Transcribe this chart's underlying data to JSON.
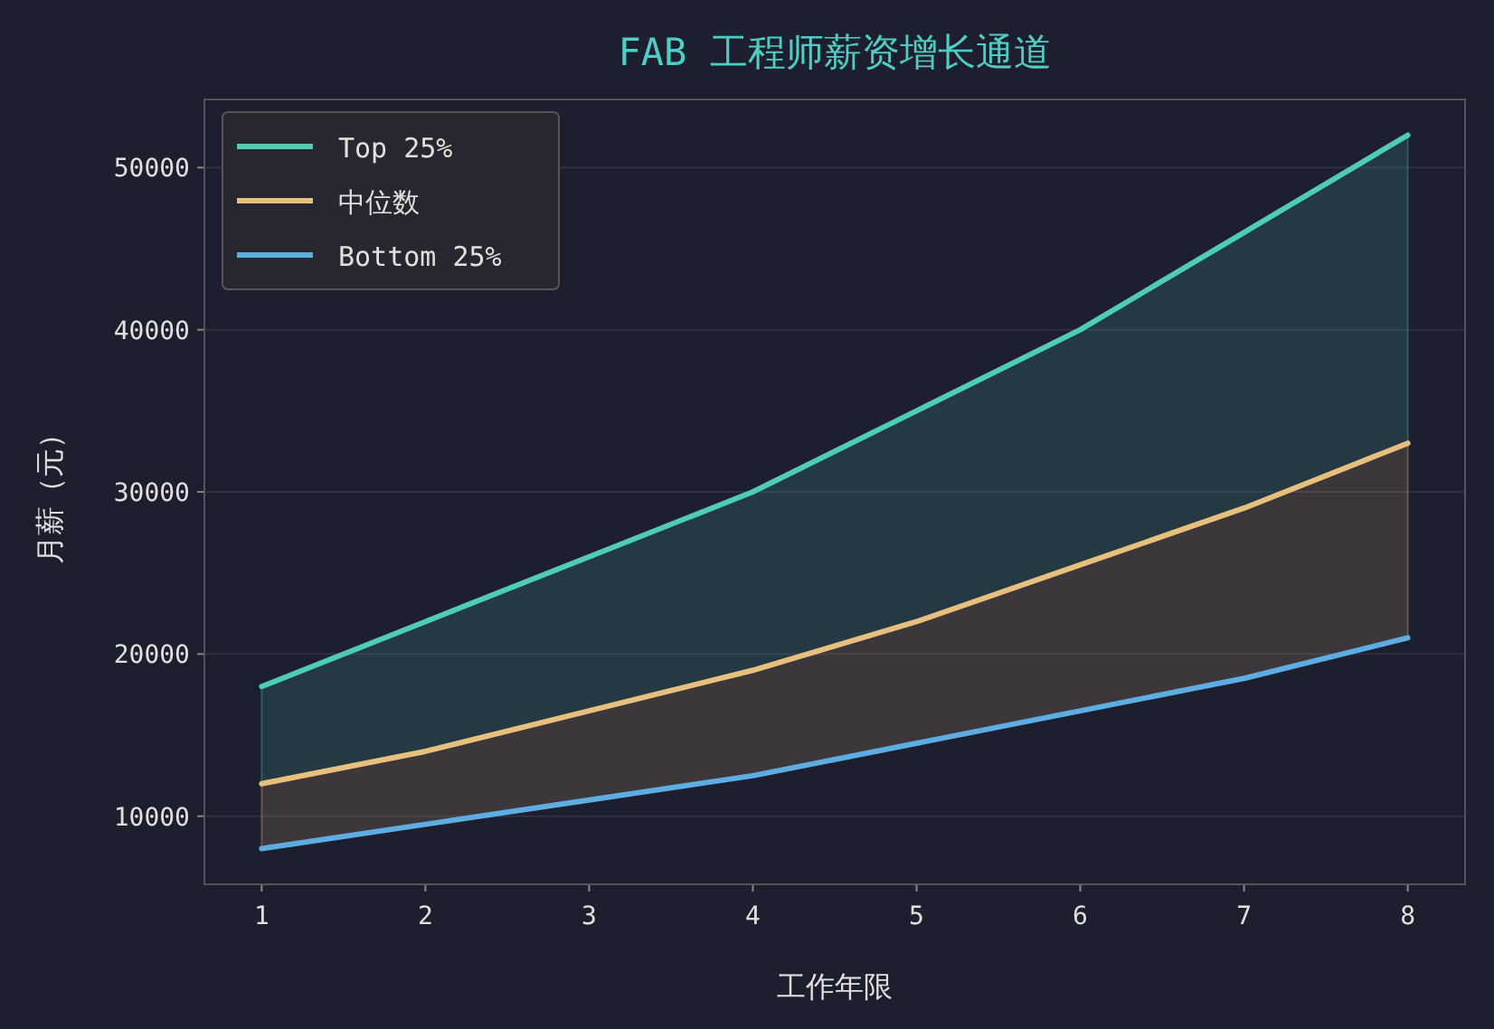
{
  "chart_data": {
    "type": "line",
    "title": "FAB 工程师薪资增长通道",
    "xlabel": "工作年限",
    "ylabel": "月薪（元）",
    "x": [
      1,
      2,
      3,
      4,
      5,
      6,
      7,
      8
    ],
    "series": [
      {
        "name": "Top 25%",
        "color": "#4ecdb4",
        "values": [
          18000,
          22000,
          26000,
          30000,
          35000,
          40000,
          46000,
          52000
        ],
        "lower": [
          12000,
          14000,
          16500,
          19000,
          22000,
          25500,
          29000,
          33000
        ],
        "upper": [
          18000,
          22000,
          26000,
          30000,
          35000,
          40000,
          46000,
          52000
        ]
      },
      {
        "name": "中位数",
        "color": "#e8c07d",
        "values": [
          12000,
          14000,
          16500,
          19000,
          22000,
          25500,
          29000,
          33000
        ],
        "lower": [
          8000,
          9500,
          11000,
          12500,
          14500,
          16500,
          18500,
          21000
        ],
        "upper": [
          12000,
          14000,
          16500,
          19000,
          22000,
          25500,
          29000,
          33000
        ]
      },
      {
        "name": "Bottom 25%",
        "color": "#5dade2",
        "values": [
          8000,
          9500,
          11000,
          12500,
          14500,
          16500,
          18500,
          21000
        ]
      }
    ],
    "xlim": [
      0.65,
      8.35
    ],
    "ylim": [
      5800,
      54200
    ],
    "xticks": [
      1,
      2,
      3,
      4,
      5,
      6,
      7,
      8
    ],
    "yticks": [
      10000,
      20000,
      30000,
      40000,
      50000
    ],
    "grid": "y",
    "legend": "top left",
    "line_style": "solid",
    "marker": "none"
  }
}
